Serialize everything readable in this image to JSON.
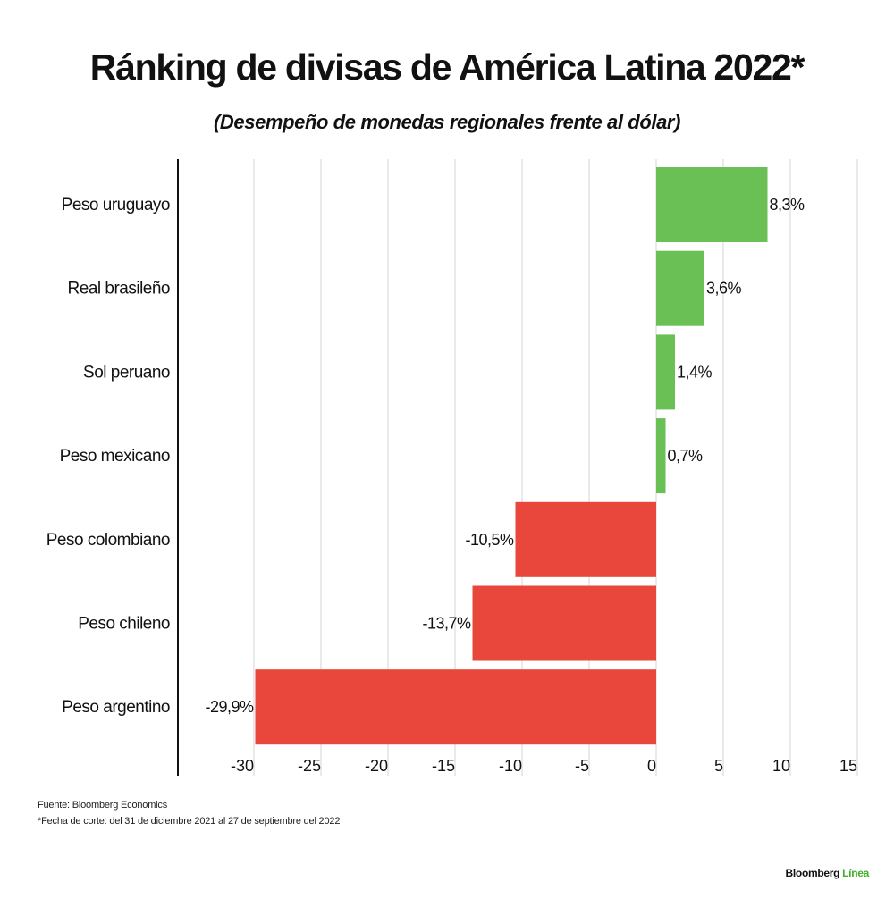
{
  "header": {
    "title": "Ránking de divisas de América Latina 2022*",
    "subtitle": "(Desempeño de monedas regionales frente al dólar)"
  },
  "chart_data": {
    "type": "bar",
    "orientation": "horizontal",
    "title": "Ránking de divisas de América Latina 2022*",
    "subtitle": "(Desempeño de monedas regionales frente al dólar)",
    "categories": [
      "Peso uruguayo",
      "Real brasileño",
      "Sol peruano",
      "Peso mexicano",
      "Peso colombiano",
      "Peso chileno",
      "Peso argentino"
    ],
    "values": [
      8.3,
      3.6,
      1.4,
      0.7,
      -10.5,
      -13.7,
      -29.9
    ],
    "value_labels": [
      "8,3%",
      "3,6%",
      "1,4%",
      "0,7%",
      "-10,5%",
      "-13,7%",
      "-29,9%"
    ],
    "xlim": [
      -35,
      15
    ],
    "xticks": [
      -30,
      -25,
      -20,
      -15,
      -10,
      -5,
      0,
      5,
      10,
      15
    ],
    "xtick_labels": [
      "-30",
      "-25",
      "-20",
      "-15",
      "-10",
      "-5",
      "0",
      "5",
      "10",
      "15"
    ],
    "grid": "vertical",
    "colors": {
      "positive": "#6abf55",
      "negative": "#ea473c"
    }
  },
  "footer": {
    "source": "Fuente: Bloomberg Economics",
    "note": "*Fecha de corte: del 31 de diciembre 2021 al 27 de septiembre del 2022",
    "brand_part1": "Bloomberg",
    "brand_part2": "Línea"
  }
}
